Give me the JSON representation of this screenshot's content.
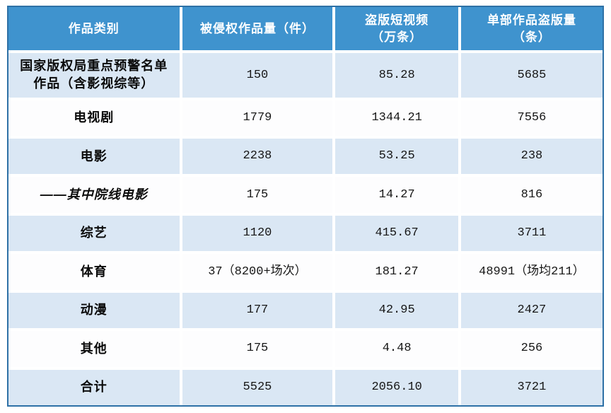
{
  "colors": {
    "header_bg": "#3f93ce",
    "row_tint": "#dae7f4",
    "table_border": "#2e71a6",
    "header_text": "#ffffff",
    "body_text": "#161616"
  },
  "table": {
    "columns": [
      {
        "lines": [
          "作品类别"
        ]
      },
      {
        "lines": [
          "被侵权作品量（件）"
        ]
      },
      {
        "lines": [
          "盗版短视频",
          "（万条）"
        ]
      },
      {
        "lines": [
          "单部作品盗版量",
          "（条）"
        ]
      }
    ],
    "rows": [
      {
        "category": "国家版权局重点预警名单作品（含影视综等）",
        "infringed": "150",
        "short_videos": "85.28",
        "per_work": "5685"
      },
      {
        "category": "电视剧",
        "infringed": "1779",
        "short_videos": "1344.21",
        "per_work": "7556"
      },
      {
        "category": "电影",
        "infringed": "2238",
        "short_videos": "53.25",
        "per_work": "238"
      },
      {
        "category": "——其中院线电影",
        "infringed": "175",
        "short_videos": "14.27",
        "per_work": "816"
      },
      {
        "category": "综艺",
        "infringed": "1120",
        "short_videos": "415.67",
        "per_work": "3711"
      },
      {
        "category": "体育",
        "infringed": "37（8200+场次）",
        "short_videos": "181.27",
        "per_work": "48991（场均211）"
      },
      {
        "category": "动漫",
        "infringed": "177",
        "short_videos": "42.95",
        "per_work": "2427"
      },
      {
        "category": "其他",
        "infringed": "175",
        "short_videos": "4.48",
        "per_work": "256"
      },
      {
        "category": "合计",
        "infringed": "5525",
        "short_videos": "2056.10",
        "per_work": "3721"
      }
    ]
  }
}
